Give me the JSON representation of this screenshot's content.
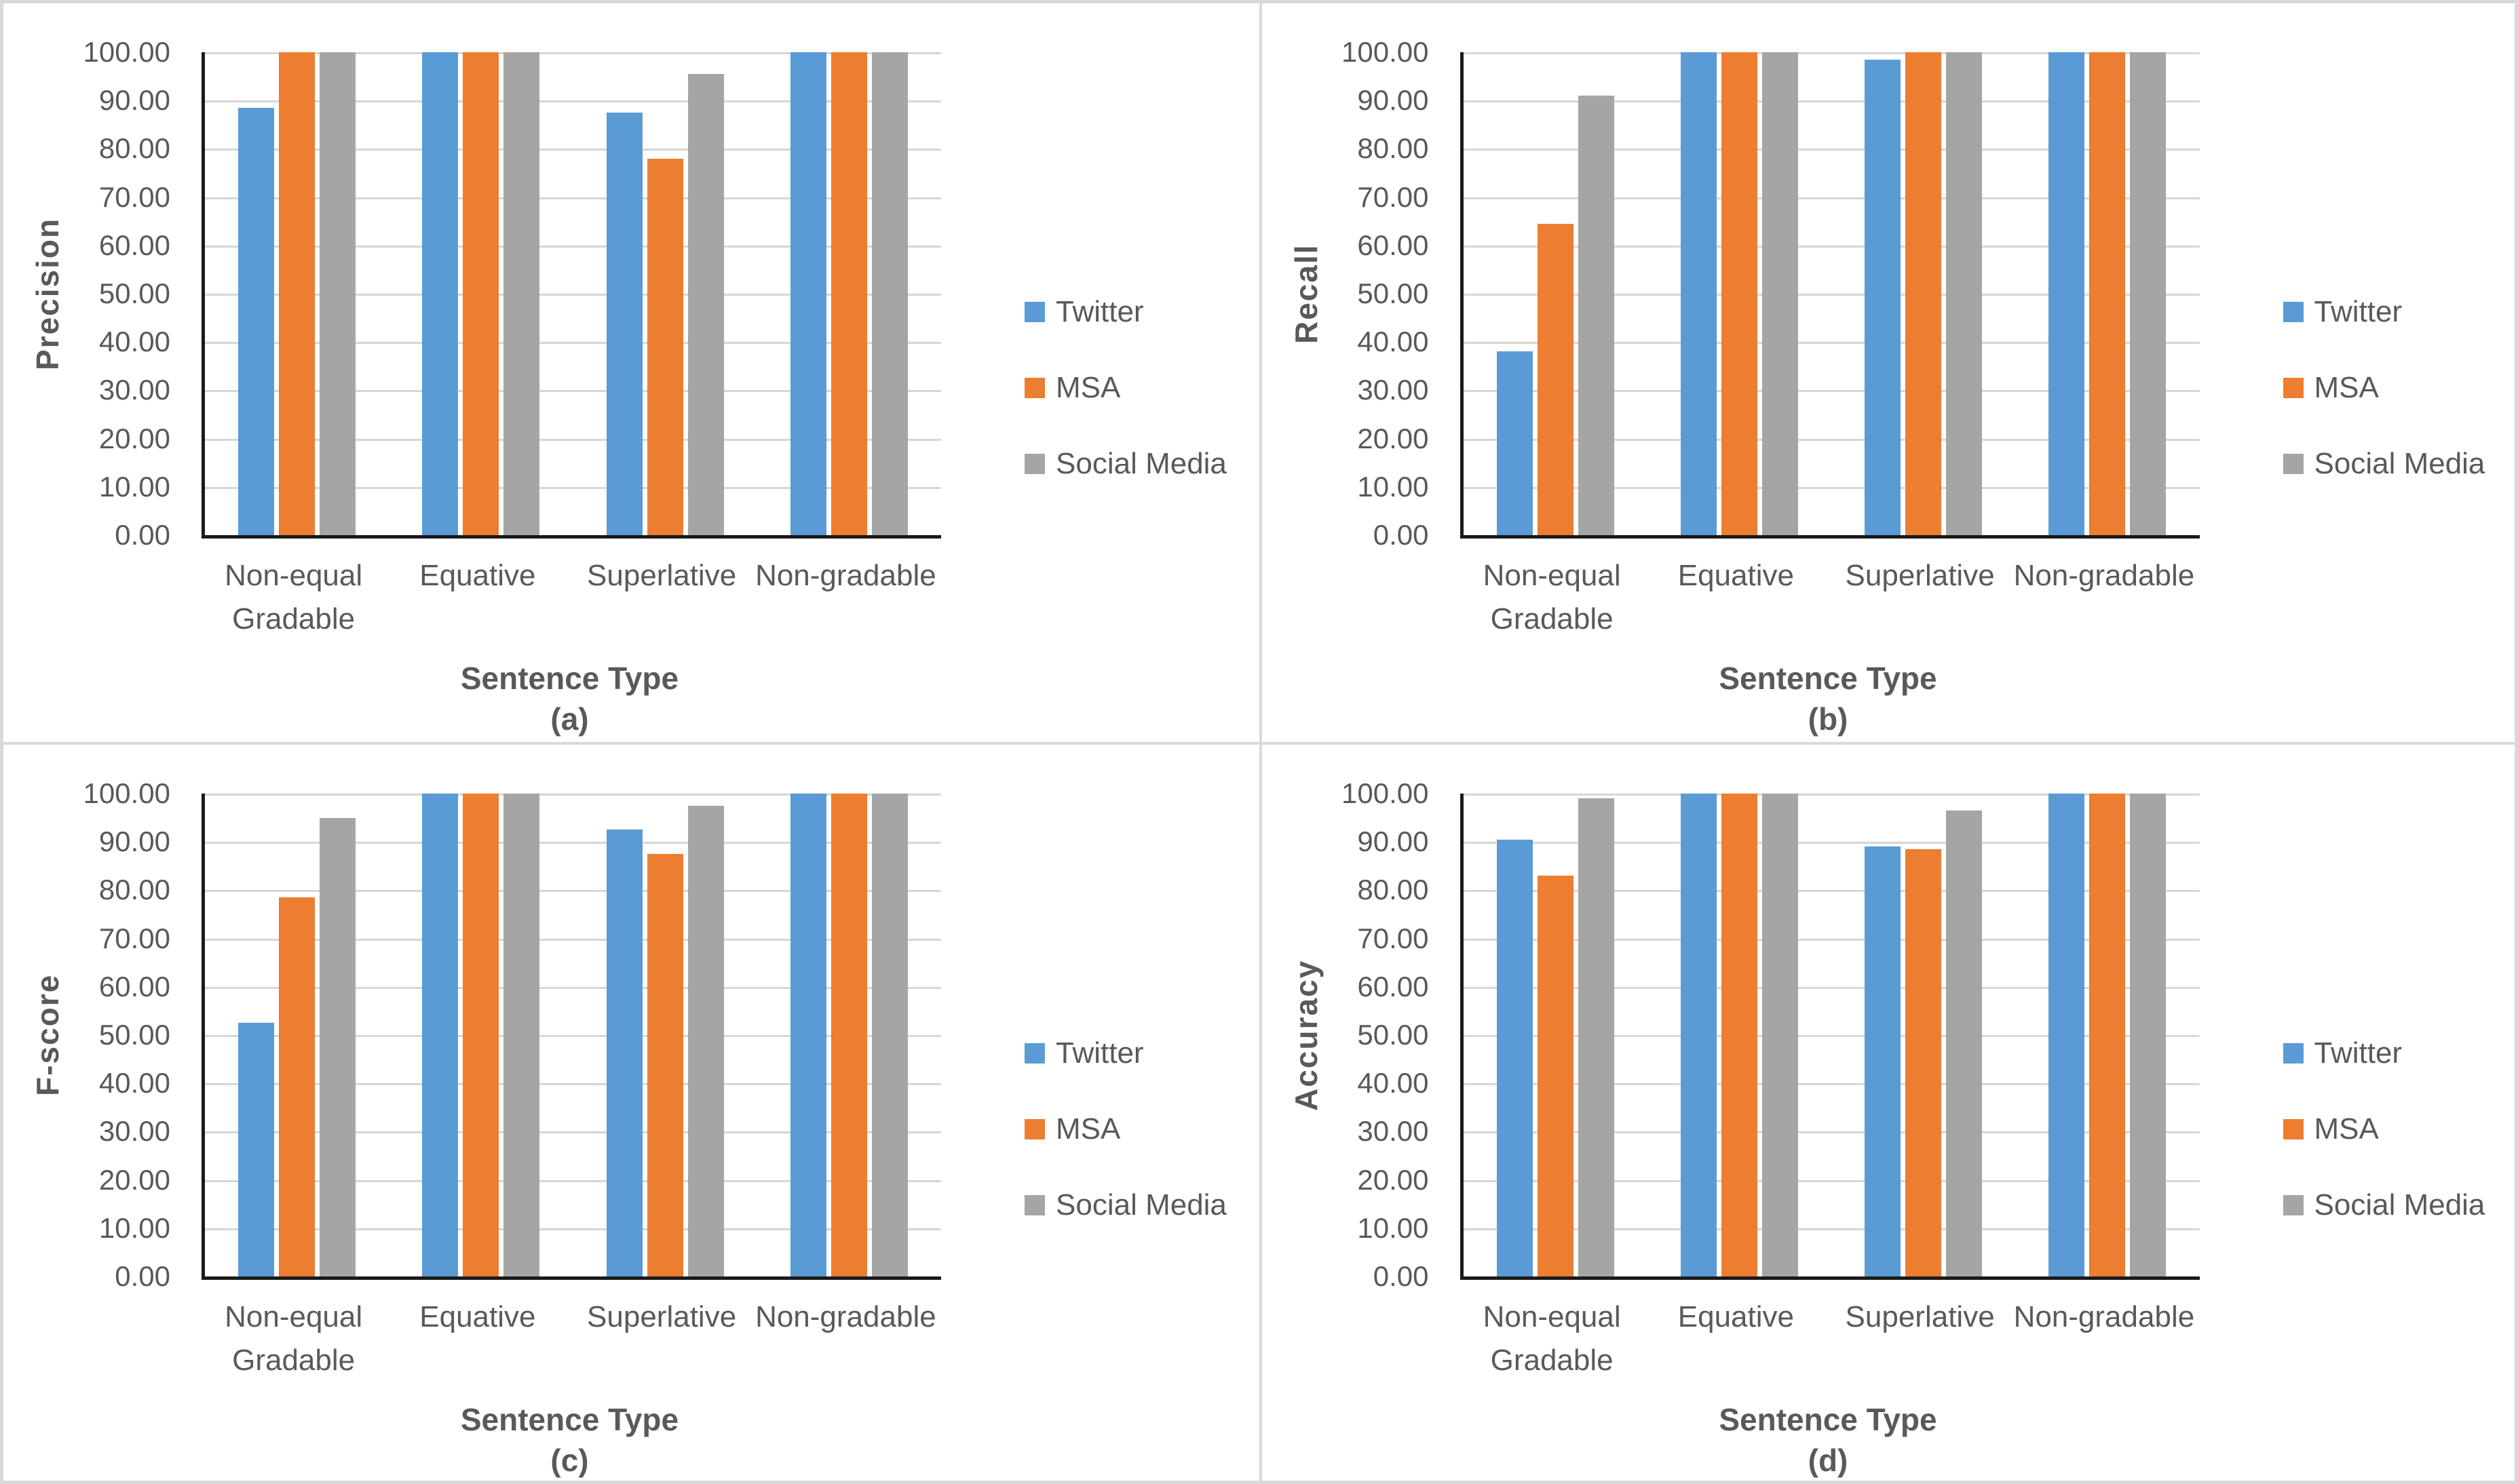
{
  "figure": {
    "background": "#ffffff",
    "frame_color": "#d9d9d9",
    "axis_line_color": "#1a1a1a",
    "gridline_color": "#d6d6d6",
    "text_color": "#595959",
    "y_tick_labels": [
      "0.00",
      "10.00",
      "20.00",
      "30.00",
      "40.00",
      "50.00",
      "60.00",
      "70.00",
      "80.00",
      "90.00",
      "100.00"
    ]
  },
  "legend": {
    "items": [
      {
        "label": "Twitter",
        "color": "#5B9BD5"
      },
      {
        "label": "MSA",
        "color": "#ED7D31"
      },
      {
        "label": "Social Media",
        "color": "#A5A5A5"
      }
    ]
  },
  "chart_data": [
    {
      "type": "bar",
      "panel_label": "(a)",
      "ylabel": "Precision",
      "xlabel": "Sentence Type",
      "categories": [
        "Non-equal Gradable",
        "Equative",
        "Superlative",
        "Non-gradable"
      ],
      "categories_display": [
        "Non-equal\nGradable",
        "Equative",
        "Superlative",
        "Non-gradable"
      ],
      "series": [
        {
          "name": "Twitter",
          "values": [
            88.5,
            100,
            87.5,
            100
          ]
        },
        {
          "name": "MSA",
          "values": [
            100,
            100,
            78,
            100
          ]
        },
        {
          "name": "Social Media",
          "values": [
            100,
            100,
            95.5,
            100
          ]
        }
      ],
      "ylim": [
        0,
        100
      ],
      "ytick_step": 10,
      "grid": true,
      "legend_position": "right"
    },
    {
      "type": "bar",
      "panel_label": "(b)",
      "ylabel": "Recall",
      "xlabel": "Sentence Type",
      "categories": [
        "Non-equal Gradable",
        "Equative",
        "Superlative",
        "Non-gradable"
      ],
      "categories_display": [
        "Non-equal\nGradable",
        "Equative",
        "Superlative",
        "Non-gradable"
      ],
      "series": [
        {
          "name": "Twitter",
          "values": [
            38,
            100,
            98.5,
            100
          ]
        },
        {
          "name": "MSA",
          "values": [
            64.5,
            100,
            100,
            100
          ]
        },
        {
          "name": "Social Media",
          "values": [
            91,
            100,
            100,
            100
          ]
        }
      ],
      "ylim": [
        0,
        100
      ],
      "ytick_step": 10,
      "grid": true,
      "legend_position": "right"
    },
    {
      "type": "bar",
      "panel_label": "(c)",
      "ylabel": "F-score",
      "xlabel": "Sentence Type",
      "categories": [
        "Non-equal Gradable",
        "Equative",
        "Superlative",
        "Non-gradable"
      ],
      "categories_display": [
        "Non-equal\nGradable",
        "Equative",
        "Superlative",
        "Non-gradable"
      ],
      "series": [
        {
          "name": "Twitter",
          "values": [
            52.5,
            100,
            92.5,
            100
          ]
        },
        {
          "name": "MSA",
          "values": [
            78.5,
            100,
            87.5,
            100
          ]
        },
        {
          "name": "Social Media",
          "values": [
            95,
            100,
            97.5,
            100
          ]
        }
      ],
      "ylim": [
        0,
        100
      ],
      "ytick_step": 10,
      "grid": true,
      "legend_position": "right"
    },
    {
      "type": "bar",
      "panel_label": "(d)",
      "ylabel": "Accuracy",
      "xlabel": "Sentence Type",
      "categories": [
        "Non-equal Gradable",
        "Equative",
        "Superlative",
        "Non-gradable"
      ],
      "categories_display": [
        "Non-equal\nGradable",
        "Equative",
        "Superlative",
        "Non-gradable"
      ],
      "series": [
        {
          "name": "Twitter",
          "values": [
            90.5,
            100,
            89,
            100
          ]
        },
        {
          "name": "MSA",
          "values": [
            83,
            100,
            88.5,
            100
          ]
        },
        {
          "name": "Social Media",
          "values": [
            99,
            100,
            96.5,
            100
          ]
        }
      ],
      "ylim": [
        0,
        100
      ],
      "ytick_step": 10,
      "grid": true,
      "legend_position": "right"
    }
  ]
}
